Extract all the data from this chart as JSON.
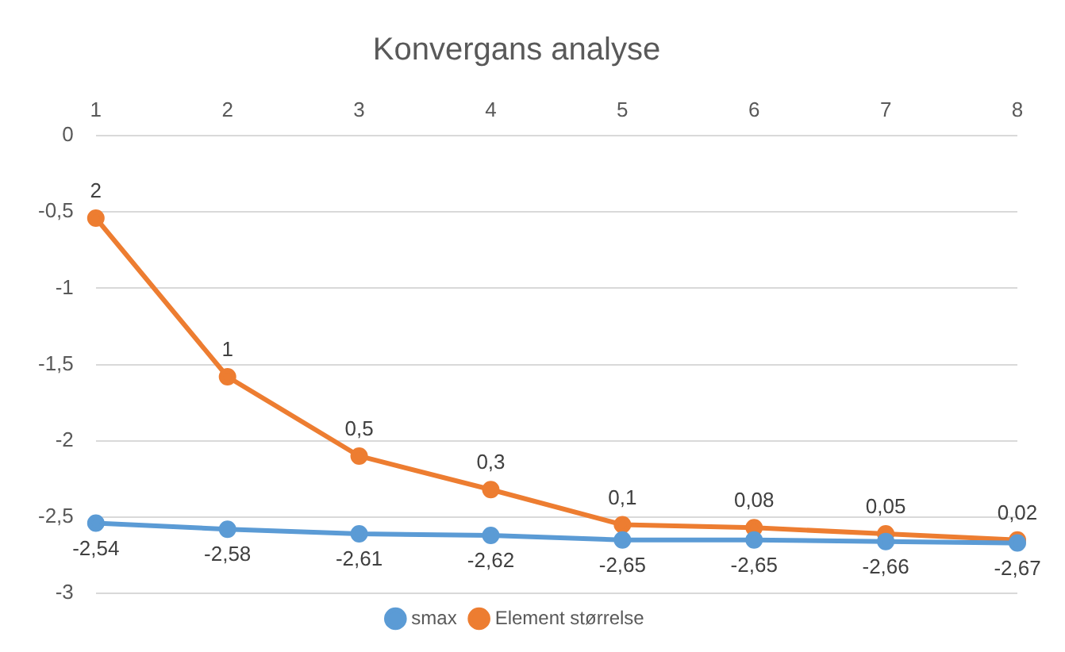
{
  "chart_data": {
    "type": "line",
    "title": "Konvergans analyse",
    "categories": [
      "1",
      "2",
      "3",
      "4",
      "5",
      "6",
      "7",
      "8"
    ],
    "series": [
      {
        "name": "smax",
        "color": "#5b9bd5",
        "values": [
          -2.54,
          -2.58,
          -2.61,
          -2.62,
          -2.65,
          -2.65,
          -2.66,
          -2.67
        ],
        "value_labels": [
          "-2,54",
          "-2,58",
          "-2,61",
          "-2,62",
          "-2,65",
          "-2,65",
          "-2,66",
          "-2,67"
        ]
      },
      {
        "name": "Element størrelse",
        "color": "#ed7d31",
        "values": [
          -0.54,
          -1.58,
          -2.1,
          -2.32,
          -2.55,
          -2.57,
          -2.61,
          -2.65
        ]
      }
    ],
    "annotations": [
      {
        "text": "2",
        "x": "1",
        "y": -0.54
      },
      {
        "text": "1",
        "x": "2",
        "y": -1.58
      },
      {
        "text": "0,5",
        "x": "3",
        "y": -2.1
      },
      {
        "text": "0,3",
        "x": "4",
        "y": -2.32
      },
      {
        "text": "0,1",
        "x": "5",
        "y": -2.55
      },
      {
        "text": "0,08",
        "x": "6",
        "y": -2.57
      },
      {
        "text": "0,05",
        "x": "7",
        "y": -2.61
      },
      {
        "text": "0,02",
        "x": "8",
        "y": -2.65
      }
    ],
    "ylim": [
      -3,
      0
    ],
    "yticks": [
      {
        "value": -3,
        "label": "-3"
      },
      {
        "value": -2.5,
        "label": "-2,5"
      },
      {
        "value": -2,
        "label": "-2"
      },
      {
        "value": -1.5,
        "label": "-1,5"
      },
      {
        "value": -1,
        "label": "-1"
      },
      {
        "value": -0.5,
        "label": "-0,5"
      },
      {
        "value": 0,
        "label": "0"
      }
    ],
    "grid": "y",
    "legend": "bottom",
    "marker": "circle",
    "line_style": "solid"
  }
}
